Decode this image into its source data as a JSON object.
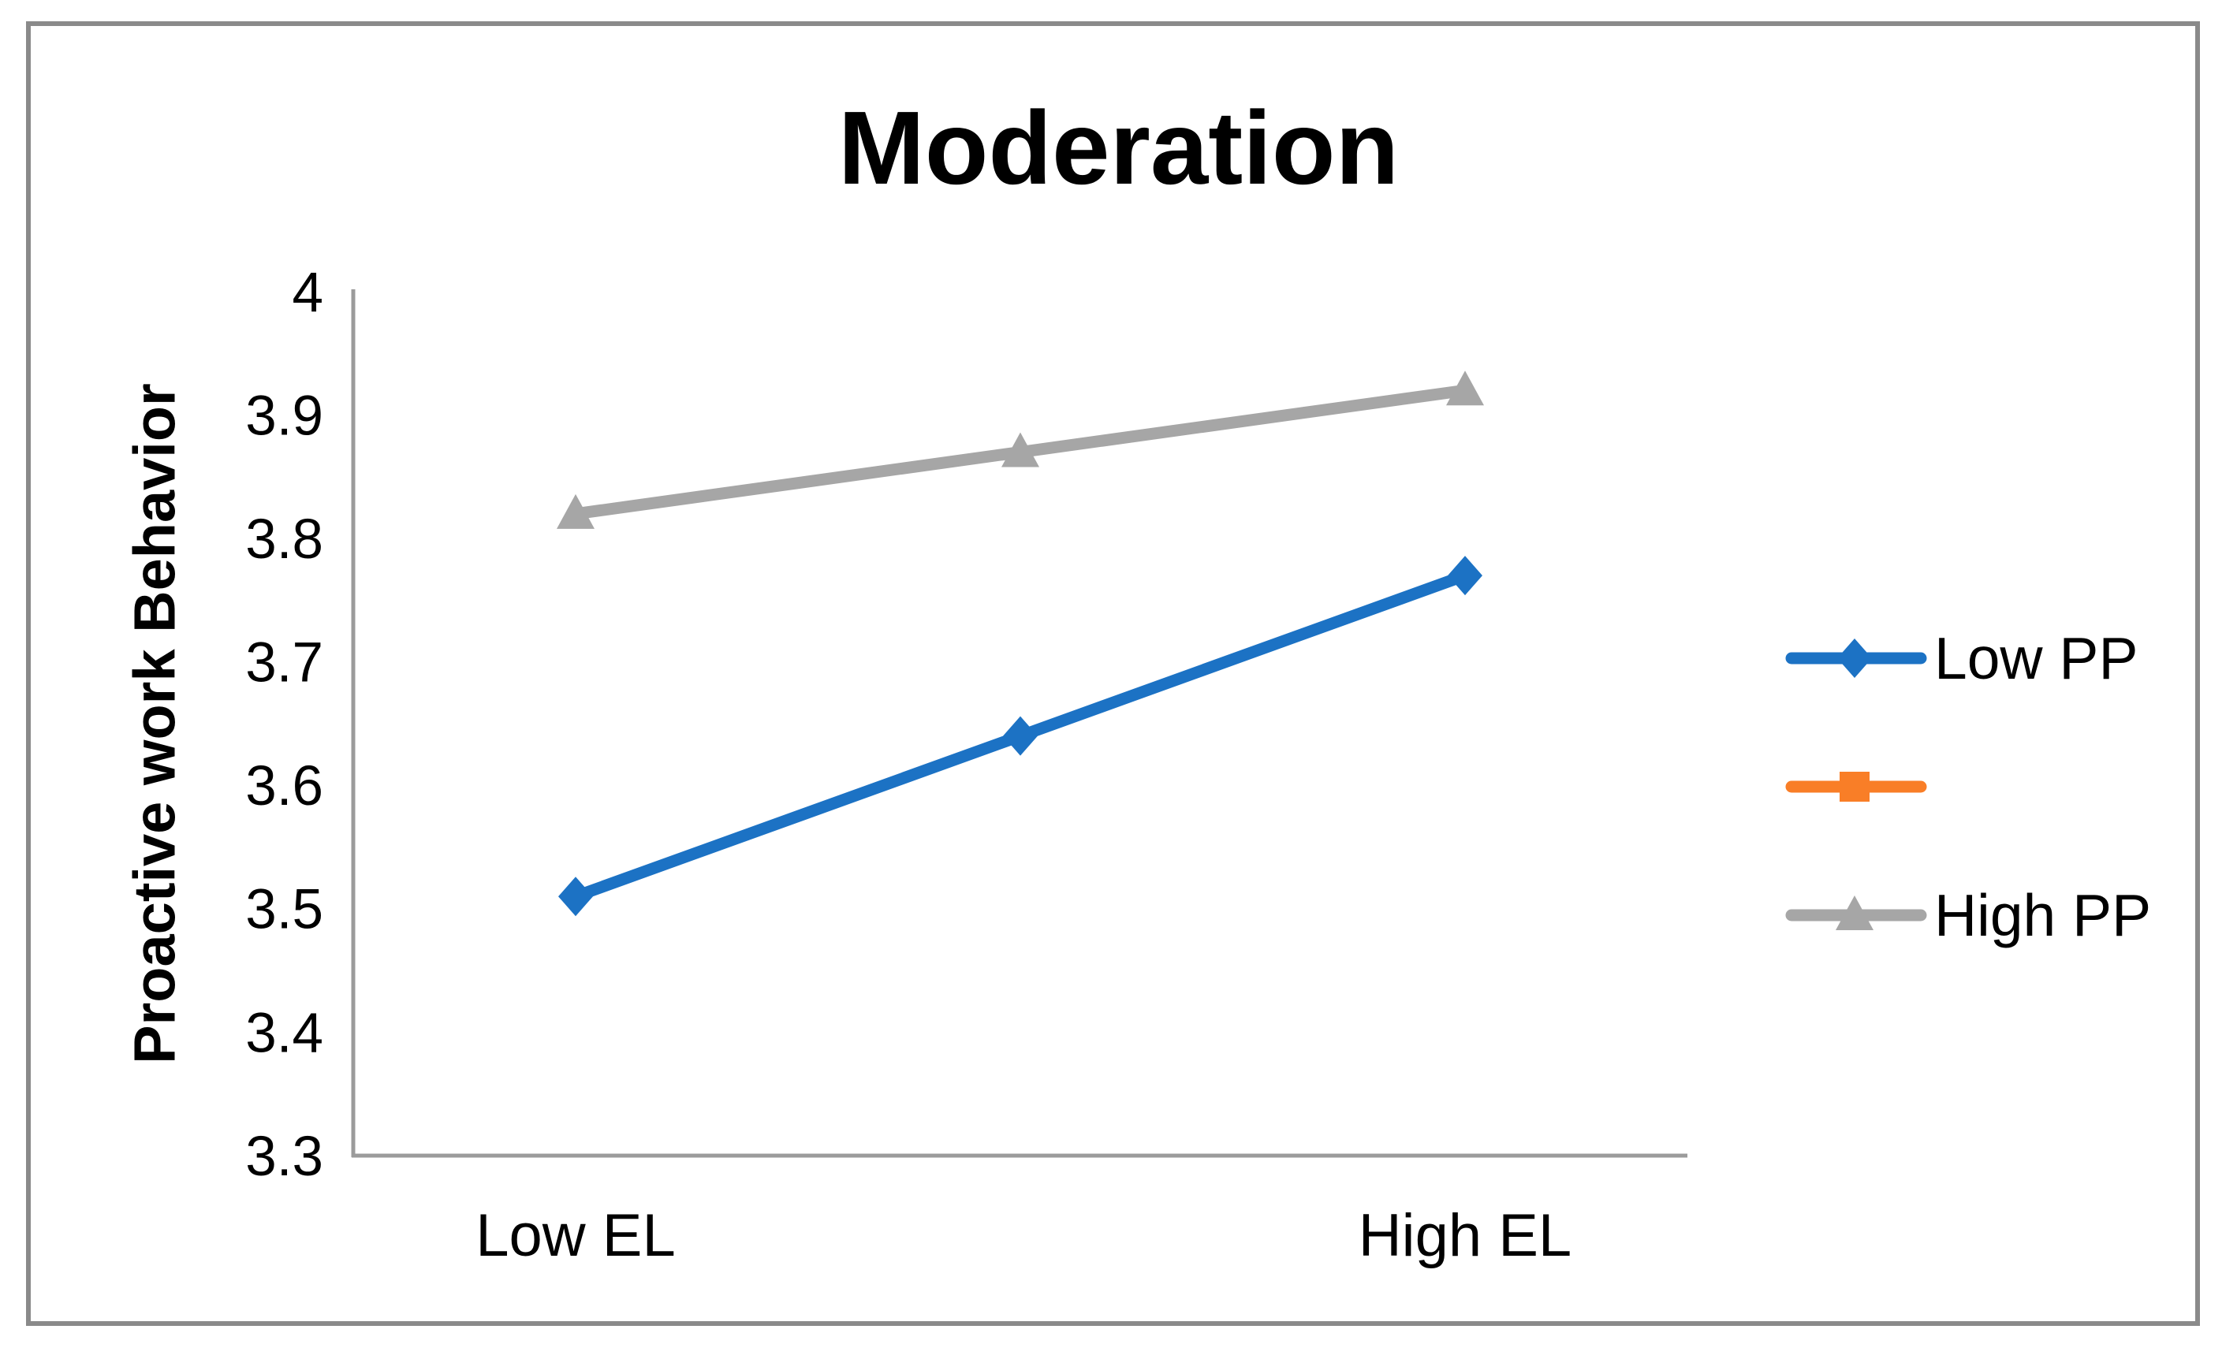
{
  "title": "Moderation",
  "y_axis": {
    "label": "Proactive work Behavior",
    "tick_labels": [
      "4",
      "3.9",
      "3.8",
      "3.7",
      "3.6",
      "3.5",
      "3.4",
      "3.3"
    ],
    "min": 3.3,
    "max": 4.0
  },
  "x_axis": {
    "labels": [
      "Low EL",
      "",
      "High EL"
    ]
  },
  "legend": {
    "position": "right",
    "items": [
      {
        "label": "Low PP",
        "marker": "diamond",
        "color": "#1C72C4"
      },
      {
        "label": "",
        "marker": "square",
        "color": "#F97E27"
      },
      {
        "label": "High PP",
        "marker": "triangle",
        "color": "#A6A6A6"
      }
    ]
  },
  "colors": {
    "series_blue": "#1C72C4",
    "series_orange": "#F97E27",
    "series_gray": "#A6A6A6",
    "axis_line": "#9B9B9B",
    "outer_border": "#8A8A8A",
    "text": "#000000",
    "background": "#FFFFFF"
  },
  "chart_data": {
    "type": "line",
    "title": "Moderation",
    "xlabel": "",
    "ylabel": "Proactive work Behavior",
    "categories": [
      "Low EL",
      "",
      "High EL"
    ],
    "series": [
      {
        "name": "Low PP",
        "marker": "diamond",
        "color": "#1C72C4",
        "values": [
          3.51,
          3.64,
          3.77
        ]
      },
      {
        "name": "",
        "marker": "square",
        "color": "#F97E27",
        "values": []
      },
      {
        "name": "High PP",
        "marker": "triangle",
        "color": "#A6A6A6",
        "values": [
          3.82,
          3.87,
          3.92
        ]
      }
    ],
    "ylim": [
      3.3,
      4.0
    ],
    "ytick_step": 0.1,
    "grid": false,
    "legend_position": "right"
  }
}
